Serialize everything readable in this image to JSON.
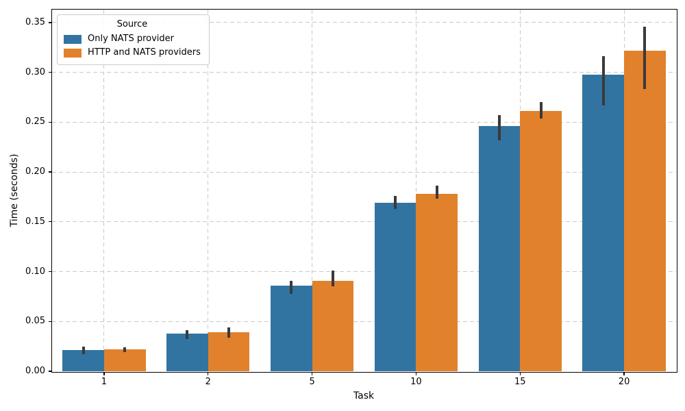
{
  "chart_data": {
    "type": "bar",
    "title": "",
    "xlabel": "Task",
    "ylabel": "Time (seconds)",
    "categories": [
      1,
      2,
      5,
      10,
      15,
      20
    ],
    "x_tick_labels": [
      "1",
      "2",
      "5",
      "10",
      "15",
      "20"
    ],
    "series": [
      {
        "name": "Only NATS provider",
        "color": "#3274a1",
        "values": [
          0.021,
          0.038,
          0.086,
          0.169,
          0.246,
          0.298
        ],
        "error_low": [
          0.017,
          0.032,
          0.078,
          0.163,
          0.232,
          0.267
        ],
        "error_high": [
          0.025,
          0.041,
          0.091,
          0.176,
          0.257,
          0.316
        ]
      },
      {
        "name": "HTTP and NATS providers",
        "color": "#e1812c",
        "values": [
          0.022,
          0.039,
          0.091,
          0.178,
          0.261,
          0.322
        ],
        "error_low": [
          0.019,
          0.034,
          0.085,
          0.173,
          0.254,
          0.283
        ],
        "error_high": [
          0.024,
          0.044,
          0.101,
          0.186,
          0.27,
          0.346
        ]
      }
    ],
    "ylim": [
      0,
      0.363
    ],
    "yticks": [
      0,
      0.05,
      0.1,
      0.15,
      0.2,
      0.25,
      0.3,
      0.35
    ],
    "ytick_labels": [
      "0.00",
      "0.05",
      "0.10",
      "0.15",
      "0.20",
      "0.25",
      "0.30",
      "0.35"
    ],
    "grid": true,
    "grid_style": "dashed",
    "legend": {
      "title": "Source",
      "position": "upper left"
    },
    "error_bar_color": "#3a3a3a"
  },
  "colors": {
    "background": "#ffffff",
    "grid": "#c9c9c9",
    "spine": "#000000",
    "text": "#000000"
  }
}
